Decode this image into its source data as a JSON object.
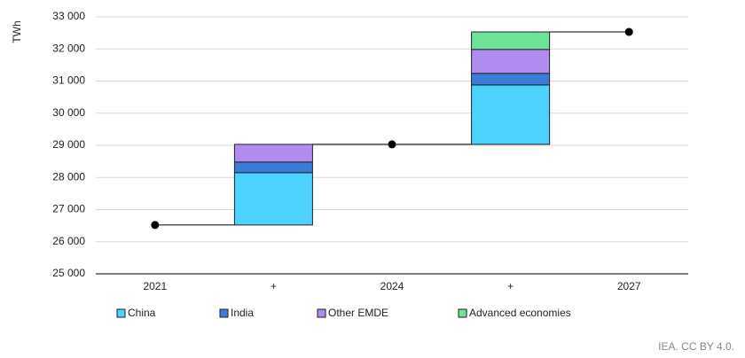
{
  "chart_data": {
    "type": "waterfall",
    "ylabel": "TWh",
    "categories": [
      "2021",
      "+",
      "2024",
      "+",
      "2027"
    ],
    "totals": [
      26520,
      null,
      29030,
      null,
      32530
    ],
    "series": [
      {
        "name": "China",
        "color": "#4dd2ff",
        "values": [
          null,
          1630,
          null,
          1850,
          null
        ]
      },
      {
        "name": "India",
        "color": "#3a7dd8",
        "values": [
          null,
          330,
          null,
          360,
          null
        ]
      },
      {
        "name": "Other EMDE",
        "color": "#b18cf0",
        "values": [
          null,
          550,
          null,
          745,
          null
        ]
      },
      {
        "name": "Advanced economies",
        "color": "#6ee49a",
        "values": [
          null,
          null,
          null,
          545,
          null
        ]
      }
    ],
    "ylim": [
      25000,
      33000
    ],
    "yticks": [
      {
        "value": 25000,
        "label": "25 000"
      },
      {
        "value": 26000,
        "label": "26 000"
      },
      {
        "value": 27000,
        "label": "27 000"
      },
      {
        "value": 28000,
        "label": "28 000"
      },
      {
        "value": 29000,
        "label": "29 000"
      },
      {
        "value": 30000,
        "label": "30 000"
      },
      {
        "value": 31000,
        "label": "31 000"
      },
      {
        "value": 32000,
        "label": "32 000"
      },
      {
        "value": 33000,
        "label": "33 000"
      }
    ],
    "grid": true,
    "legend": "bottom",
    "source": "IEA. CC BY 4.0."
  }
}
